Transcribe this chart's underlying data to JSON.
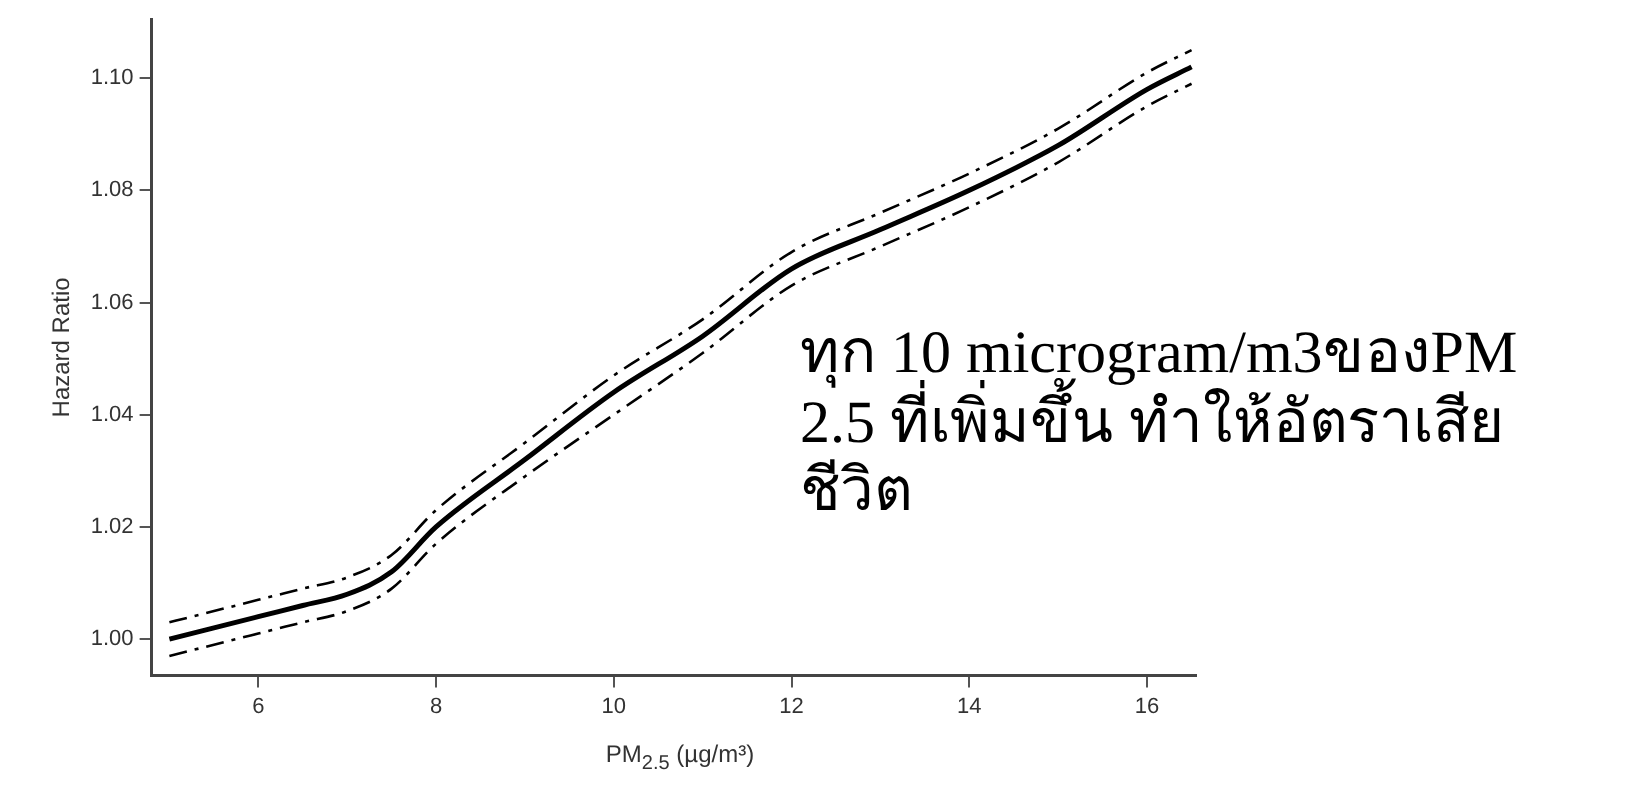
{
  "chart_data": {
    "type": "line",
    "ylabel": "Hazard Ratio",
    "xlabel": "PM$_{2.5}$ (µg/m³)",
    "x": [
      5,
      6,
      6.5,
      7,
      7.5,
      8,
      9,
      10,
      11,
      12,
      13,
      14,
      15,
      16,
      16.5
    ],
    "series": [
      {
        "color": "#000000",
        "line_style": "solid",
        "values": [
          1.0,
          1.004,
          1.006,
          1.008,
          1.012,
          1.02,
          1.032,
          1.044,
          1.054,
          1.066,
          1.073,
          1.08,
          1.088,
          1.098,
          1.102
        ]
      },
      {
        "color": "#000000",
        "line_style": "dashed",
        "values": [
          0.997,
          1.001,
          1.003,
          1.005,
          1.009,
          1.017,
          1.029,
          1.04,
          1.051,
          1.063,
          1.07,
          1.077,
          1.085,
          1.095,
          1.099
        ]
      },
      {
        "color": "#000000",
        "line_style": "dashed",
        "values": [
          1.003,
          1.007,
          1.009,
          1.011,
          1.015,
          1.023,
          1.035,
          1.047,
          1.057,
          1.069,
          1.076,
          1.083,
          1.091,
          1.101,
          1.105
        ]
      }
    ],
    "xlim": [
      4.8,
      16.55
    ],
    "xticks": [
      6,
      8,
      10,
      12,
      14,
      16
    ],
    "ylim": [
      0.9935,
      1.1105
    ],
    "yticks": [
      {
        "value": 1.0,
        "label": "1.00"
      },
      {
        "value": 1.02,
        "label": "1.02"
      },
      {
        "value": 1.04,
        "label": "1.04"
      },
      {
        "value": 1.06,
        "label": "1.06"
      },
      {
        "value": 1.08,
        "label": "1.08"
      },
      {
        "value": 1.1,
        "label": "1.10"
      }
    ],
    "grid": false,
    "legend": false,
    "marker": "none",
    "annotations": [
      "ทุก 10 microgram/m3ของPM 2.5 ที่เพิ่มขึ้น ทำให้อัตราเสียชีวิต"
    ]
  }
}
